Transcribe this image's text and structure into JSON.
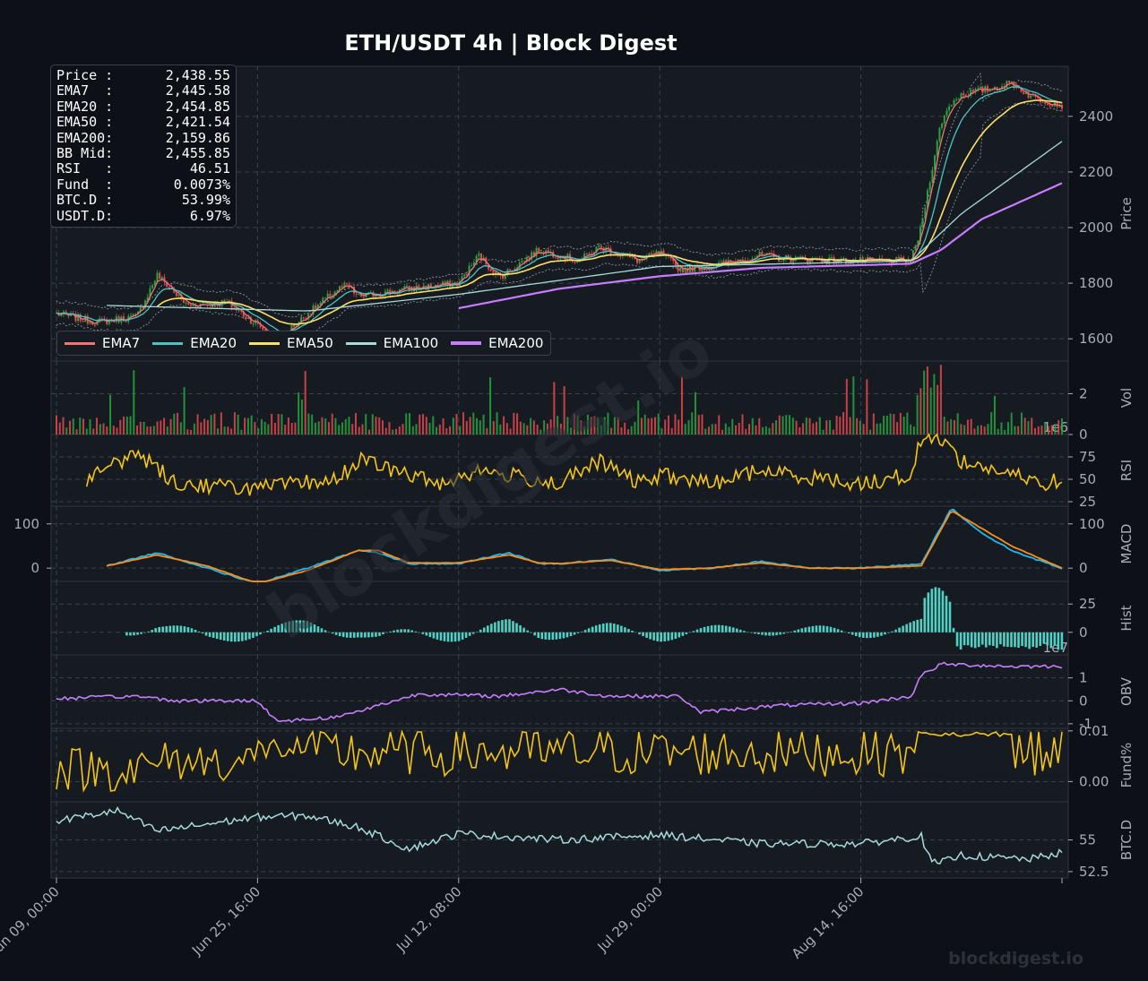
{
  "title": "ETH/USDT  4h  |  Block Digest",
  "watermark": "blockdigest.io",
  "footer": "blockdigest.io",
  "colors": {
    "background": "#0d1117",
    "panel": "#161b22",
    "up": "#26a641",
    "down": "#e5484d",
    "ema7": "#f47174",
    "ema20": "#4ec3c3",
    "ema50": "#ffe066",
    "ema100": "#a8dadc",
    "ema200": "#c77dff",
    "rsi": "#f5c518",
    "macd": "#1fb8f0",
    "signal": "#ff8c1a",
    "hist": "#4fd1c5",
    "obv": "#c77dff",
    "funding": "#f5c518",
    "btcd": "#a8dadc"
  },
  "info": [
    {
      "label": "Price :",
      "value": "2,438.55"
    },
    {
      "label": "EMA7  :",
      "value": "2,445.58"
    },
    {
      "label": "EMA20 :",
      "value": "2,454.85"
    },
    {
      "label": "EMA50 :",
      "value": "2,421.54"
    },
    {
      "label": "EMA200:",
      "value": "2,159.86"
    },
    {
      "label": "BB Mid:",
      "value": "2,455.85"
    },
    {
      "label": "RSI   :",
      "value": "46.51"
    },
    {
      "label": "Fund  :",
      "value": "0.0073%"
    },
    {
      "label": "BTC.D :",
      "value": "53.99%"
    },
    {
      "label": "USDT.D:",
      "value": "6.97%"
    }
  ],
  "legend": [
    {
      "label": "EMA7",
      "color": "#f47174"
    },
    {
      "label": "EMA20",
      "color": "#4ec3c3"
    },
    {
      "label": "EMA50",
      "color": "#ffe066"
    },
    {
      "label": "EMA100",
      "color": "#a8dadc"
    },
    {
      "label": "EMA200",
      "color": "#c77dff"
    }
  ],
  "chart_data": {
    "type": "line",
    "subtype": "candlestick with indicator sub-panels",
    "x_ticks": [
      "Jun 09, 00:00",
      "Jun 25, 16:00",
      "Jul 12, 08:00",
      "Jul 29, 00:00",
      "Aug 14, 16:00"
    ],
    "x_tick_fractions": [
      0.0,
      0.2,
      0.4,
      0.6,
      0.8
    ],
    "x_range_fraction_end": 1.0,
    "grid": true,
    "legend_position": "lower-left of price panel",
    "panels": [
      {
        "name": "price",
        "ylabel": "Price",
        "ylim": [
          1520,
          2580
        ],
        "yticks": [
          1600,
          1800,
          2000,
          2200,
          2400
        ],
        "anchors_x": [
          0.0,
          0.04,
          0.08,
          0.1,
          0.13,
          0.17,
          0.2,
          0.22,
          0.25,
          0.28,
          0.29,
          0.3,
          0.35,
          0.4,
          0.42,
          0.44,
          0.48,
          0.52,
          0.54,
          0.58,
          0.6,
          0.62,
          0.65,
          0.7,
          0.72,
          0.78,
          0.85,
          0.86,
          0.87,
          0.88,
          0.89,
          0.9,
          0.93,
          0.95,
          0.97,
          1.0
        ],
        "close_anchors": [
          1690,
          1660,
          1680,
          1830,
          1720,
          1730,
          1650,
          1600,
          1690,
          1780,
          1790,
          1750,
          1780,
          1800,
          1900,
          1820,
          1920,
          1880,
          1930,
          1880,
          1910,
          1850,
          1860,
          1900,
          1890,
          1880,
          1880,
          2000,
          2200,
          2380,
          2450,
          2480,
          2500,
          2520,
          2470,
          2440
        ]
      },
      {
        "name": "ema200",
        "x_start": 0.4,
        "values_at": [
          [
            0.4,
            1710
          ],
          [
            0.5,
            1780
          ],
          [
            0.6,
            1825
          ],
          [
            0.7,
            1855
          ],
          [
            0.85,
            1870
          ],
          [
            0.88,
            1920
          ],
          [
            0.92,
            2030
          ],
          [
            1.0,
            2160
          ]
        ]
      },
      {
        "name": "ema100",
        "x_start": 0.05,
        "values_at": [
          [
            0.05,
            1720
          ],
          [
            0.25,
            1700
          ],
          [
            0.4,
            1760
          ],
          [
            0.6,
            1860
          ],
          [
            0.85,
            1880
          ],
          [
            0.9,
            2050
          ],
          [
            1.0,
            2310
          ]
        ]
      },
      {
        "name": "volume",
        "ylabel": "Vol",
        "scale_label": "1e6",
        "ylim": [
          0,
          3.6
        ],
        "yticks": [
          0,
          2
        ]
      },
      {
        "name": "rsi",
        "ylabel": "RSI",
        "ylim": [
          20,
          100
        ],
        "yticks": [
          25,
          50,
          75
        ],
        "anchors_x": [
          0.03,
          0.08,
          0.12,
          0.2,
          0.28,
          0.3,
          0.38,
          0.42,
          0.5,
          0.54,
          0.58,
          0.6,
          0.65,
          0.7,
          0.8,
          0.85,
          0.86,
          0.88,
          0.9,
          0.95,
          0.98,
          1.0
        ],
        "values": [
          50,
          80,
          45,
          40,
          50,
          72,
          45,
          60,
          45,
          70,
          45,
          55,
          45,
          60,
          45,
          55,
          95,
          97,
          70,
          55,
          45,
          50
        ]
      },
      {
        "name": "macd",
        "ylabel": "MACD",
        "ylim": [
          -30,
          140
        ],
        "yticks": [
          0,
          100
        ],
        "left_ticks": [
          0,
          100
        ],
        "anchors_x": [
          0.05,
          0.1,
          0.15,
          0.2,
          0.25,
          0.3,
          0.32,
          0.35,
          0.4,
          0.45,
          0.48,
          0.5,
          0.55,
          0.6,
          0.65,
          0.7,
          0.75,
          0.8,
          0.86,
          0.89,
          0.92,
          0.95,
          0.98,
          1.0
        ],
        "macd": [
          5,
          35,
          0,
          -35,
          0,
          40,
          35,
          10,
          10,
          35,
          10,
          10,
          20,
          -5,
          0,
          15,
          0,
          0,
          10,
          135,
          80,
          40,
          15,
          0
        ],
        "signal": [
          5,
          30,
          5,
          -35,
          -5,
          40,
          40,
          12,
          12,
          30,
          12,
          10,
          18,
          -3,
          0,
          12,
          0,
          0,
          5,
          130,
          90,
          50,
          20,
          0
        ]
      },
      {
        "name": "hist",
        "ylabel": "Hist",
        "ylim": [
          -20,
          45
        ],
        "yticks": [
          0,
          25
        ],
        "scale_label": "1e7"
      },
      {
        "name": "obv",
        "ylabel": "OBV",
        "ylim": [
          -1.2,
          2.0
        ],
        "yticks": [
          -1,
          0,
          1
        ],
        "anchors_x": [
          0.0,
          0.08,
          0.12,
          0.2,
          0.22,
          0.28,
          0.36,
          0.44,
          0.5,
          0.55,
          0.62,
          0.64,
          0.72,
          0.8,
          0.85,
          0.86,
          0.88,
          0.95,
          1.0
        ],
        "values": [
          0.1,
          0.2,
          0.0,
          0.0,
          -0.9,
          -0.7,
          0.3,
          0.2,
          0.5,
          0.2,
          0.2,
          -0.5,
          -0.2,
          -0.1,
          0.2,
          1.1,
          1.6,
          1.5,
          1.5
        ]
      },
      {
        "name": "funding",
        "ylabel": "Fund%",
        "ylim": [
          -0.004,
          0.0105
        ],
        "yticks": [
          0.0,
          0.01
        ],
        "ytick_labels": [
          "0.00",
          "0.01"
        ]
      },
      {
        "name": "btcd",
        "ylabel": "BTC.D",
        "ylim": [
          52.0,
          58.0
        ],
        "yticks": [
          52.5,
          55.0
        ],
        "anchors_x": [
          0.0,
          0.06,
          0.1,
          0.2,
          0.25,
          0.3,
          0.35,
          0.4,
          0.5,
          0.6,
          0.7,
          0.8,
          0.86,
          0.87,
          0.88,
          0.9,
          0.93,
          0.97,
          1.0
        ],
        "values": [
          56.5,
          57.3,
          55.7,
          56.8,
          56.9,
          56.0,
          54.3,
          55.5,
          55.0,
          55.4,
          54.7,
          54.7,
          55.3,
          53.2,
          53.2,
          53.8,
          53.6,
          53.5,
          54.0
        ]
      }
    ]
  }
}
